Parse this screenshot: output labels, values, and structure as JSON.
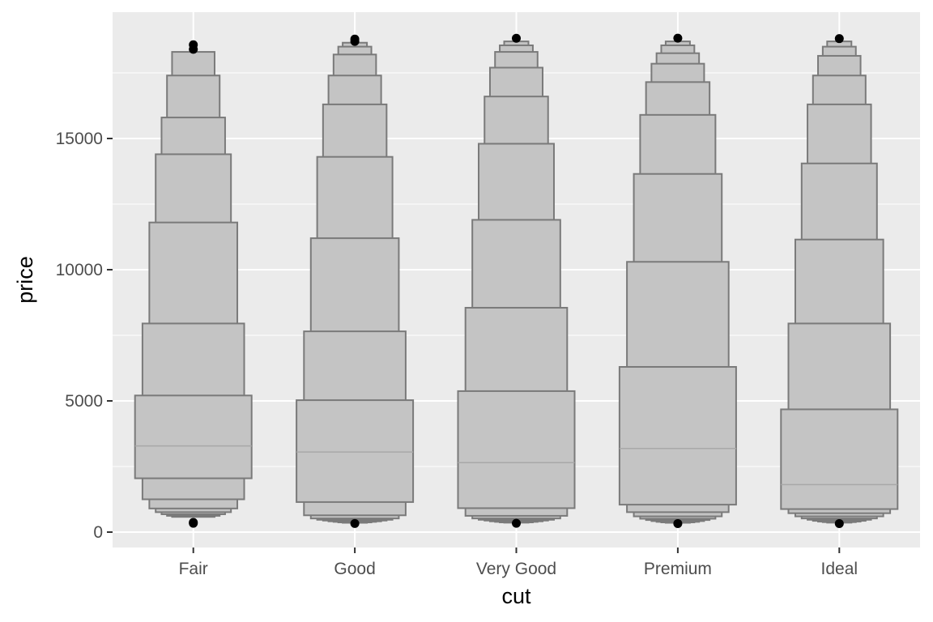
{
  "chart_data": {
    "type": "boxplot",
    "xlabel": "cut",
    "ylabel": "price",
    "ylim": [
      -550,
      19500
    ],
    "y_ticks": [
      0,
      5000,
      10000,
      15000
    ],
    "y_tick_labels": [
      "0",
      "5000",
      "10000",
      "15000"
    ],
    "categories": [
      "Fair",
      "Good",
      "Very Good",
      "Premium",
      "Ideal"
    ],
    "groups": [
      {
        "category": "Fair",
        "median": 3282,
        "boxes": [
          {
            "lower": 2050,
            "upper": 5206
          },
          {
            "lower": 1250,
            "upper": 7950
          },
          {
            "lower": 900,
            "upper": 11800
          },
          {
            "lower": 760,
            "upper": 14400
          },
          {
            "lower": 680,
            "upper": 15800
          },
          {
            "lower": 620,
            "upper": 17400
          },
          {
            "lower": 580,
            "upper": 18300
          }
        ],
        "outliers": [
          337,
          369,
          18400,
          18574
        ]
      },
      {
        "category": "Good",
        "median": 3050,
        "boxes": [
          {
            "lower": 1145,
            "upper": 5028
          },
          {
            "lower": 640,
            "upper": 7650
          },
          {
            "lower": 520,
            "upper": 11200
          },
          {
            "lower": 470,
            "upper": 14300
          },
          {
            "lower": 440,
            "upper": 16300
          },
          {
            "lower": 410,
            "upper": 17400
          },
          {
            "lower": 390,
            "upper": 18200
          },
          {
            "lower": 370,
            "upper": 18500
          },
          {
            "lower": 355,
            "upper": 18650
          }
        ],
        "outliers": [
          327,
          18700,
          18788
        ]
      },
      {
        "category": "Very Good",
        "median": 2648,
        "boxes": [
          {
            "lower": 912,
            "upper": 5373
          },
          {
            "lower": 620,
            "upper": 8550
          },
          {
            "lower": 520,
            "upper": 11900
          },
          {
            "lower": 470,
            "upper": 14800
          },
          {
            "lower": 440,
            "upper": 16600
          },
          {
            "lower": 410,
            "upper": 17700
          },
          {
            "lower": 390,
            "upper": 18300
          },
          {
            "lower": 370,
            "upper": 18550
          },
          {
            "lower": 360,
            "upper": 18700
          }
        ],
        "outliers": [
          336,
          18818
        ]
      },
      {
        "category": "Premium",
        "median": 3185,
        "boxes": [
          {
            "lower": 1046,
            "upper": 6296
          },
          {
            "lower": 760,
            "upper": 10300
          },
          {
            "lower": 600,
            "upper": 13650
          },
          {
            "lower": 510,
            "upper": 15900
          },
          {
            "lower": 460,
            "upper": 17150
          },
          {
            "lower": 420,
            "upper": 17850
          },
          {
            "lower": 390,
            "upper": 18250
          },
          {
            "lower": 370,
            "upper": 18550
          },
          {
            "lower": 355,
            "upper": 18700
          }
        ],
        "outliers": [
          326,
          18823
        ]
      },
      {
        "category": "Ideal",
        "median": 1810,
        "boxes": [
          {
            "lower": 878,
            "upper": 4678
          },
          {
            "lower": 720,
            "upper": 7950
          },
          {
            "lower": 600,
            "upper": 11150
          },
          {
            "lower": 520,
            "upper": 14050
          },
          {
            "lower": 470,
            "upper": 16300
          },
          {
            "lower": 430,
            "upper": 17400
          },
          {
            "lower": 400,
            "upper": 18150
          },
          {
            "lower": 380,
            "upper": 18500
          },
          {
            "lower": 360,
            "upper": 18700
          }
        ],
        "outliers": [
          326,
          18806
        ]
      }
    ],
    "colors": {
      "panel": "#ebebeb",
      "grid_major": "#ffffff",
      "box_fill": "#c4c4c4",
      "box_stroke": "#7a7a7a",
      "median": "#a8a8a8",
      "outlier": "#000000"
    },
    "legend": "none",
    "grid": true
  }
}
